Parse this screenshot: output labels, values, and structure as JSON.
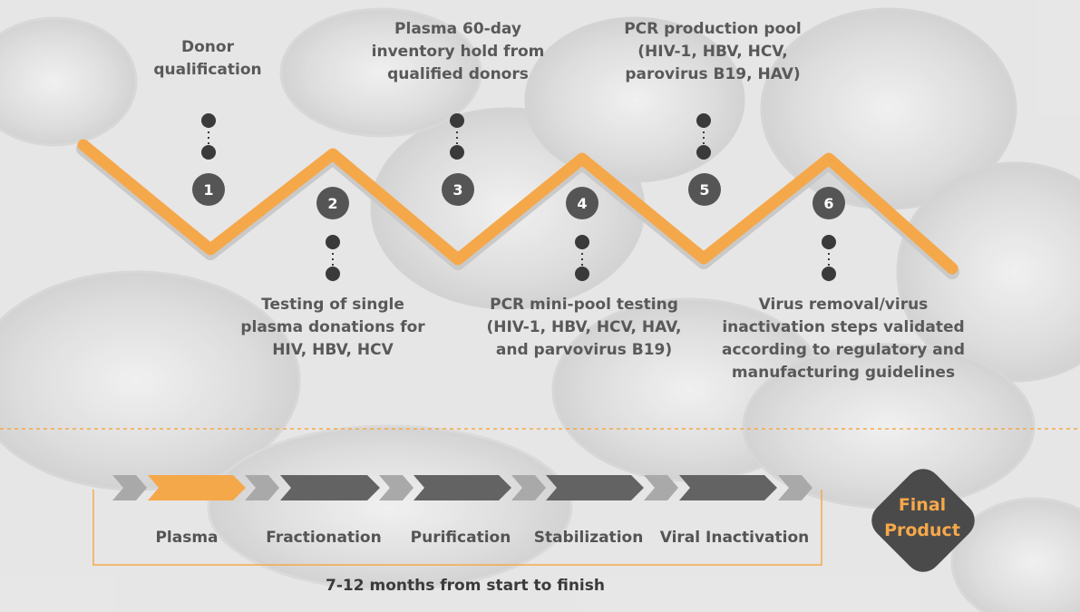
{
  "steps": [
    {
      "num": "1",
      "text": [
        "Donor",
        "qualification"
      ]
    },
    {
      "num": "2",
      "text": [
        "Testing of single",
        "plasma donations for",
        "HIV, HBV, HCV"
      ]
    },
    {
      "num": "3",
      "text": [
        "Plasma 60-day",
        "inventory hold from",
        "qualified donors"
      ]
    },
    {
      "num": "4",
      "text": [
        "PCR mini-pool testing",
        "(HIV-1, HBV, HCV, HAV,",
        "and parvovirus B19)"
      ]
    },
    {
      "num": "5",
      "text": [
        "PCR production pool",
        "(HIV-1, HBV, HCV,",
        "parovirus B19, HAV)"
      ]
    },
    {
      "num": "6",
      "text": [
        "Virus removal/virus",
        "inactivation steps validated",
        "according to regulatory and",
        "manufacturing guidelines"
      ]
    }
  ],
  "stages": [
    "Plasma",
    "Fractionation",
    "Purification",
    "Stabilization",
    "Viral Inactivation"
  ],
  "timeline_note": "7-12 months from start to finish",
  "final_product": [
    "Final",
    "Product"
  ],
  "colors": {
    "orange": "#f5a84a",
    "dark": "#555555",
    "mid": "#666666",
    "light": "#a9a9a9",
    "final_bg": "#4a4a4a"
  }
}
